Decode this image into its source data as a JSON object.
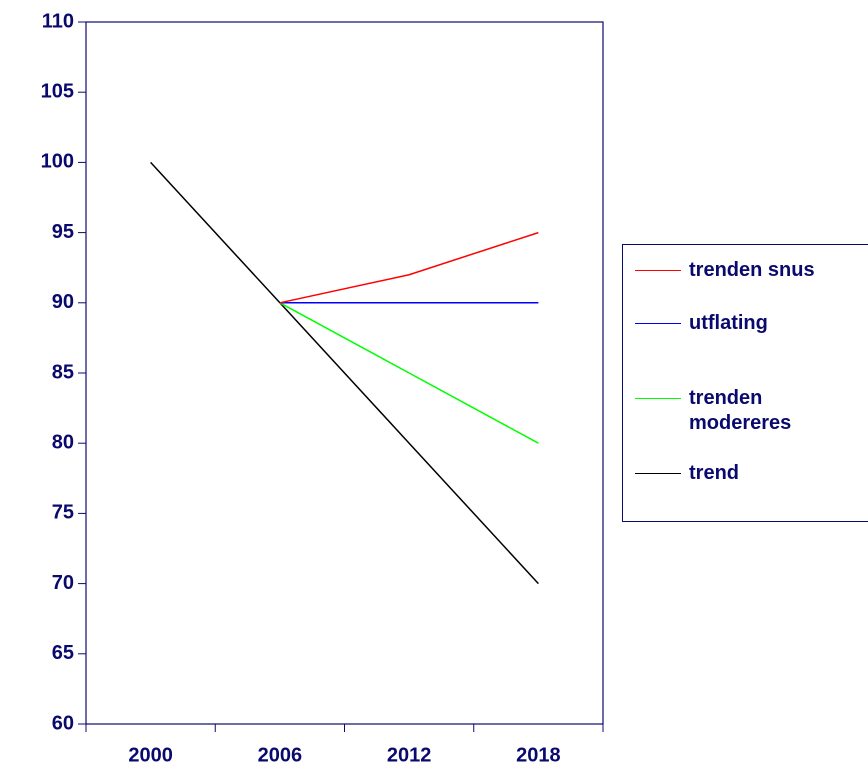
{
  "chart_data": {
    "type": "line",
    "categories": [
      "2000",
      "2006",
      "2012",
      "2018"
    ],
    "series": [
      {
        "name": "trenden snus",
        "color": "#ff0000",
        "values": [
          null,
          90,
          92,
          95
        ]
      },
      {
        "name": "utflating",
        "color": "#0000ff",
        "values": [
          null,
          90,
          90,
          90
        ]
      },
      {
        "name": "trenden modereres",
        "color": "#00ff00",
        "values": [
          null,
          90,
          85,
          80
        ]
      },
      {
        "name": "trend",
        "color": "#000000",
        "values": [
          100,
          90,
          80,
          70
        ]
      }
    ],
    "ylim": [
      60,
      110
    ],
    "yticks": [
      60,
      65,
      70,
      75,
      80,
      85,
      90,
      95,
      100,
      105,
      110
    ],
    "grid": false,
    "legend": "right"
  }
}
